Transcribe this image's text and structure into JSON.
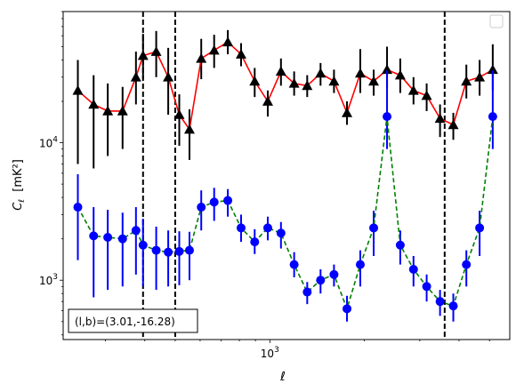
{
  "chart_data": {
    "type": "line",
    "xscale": "log",
    "yscale": "log",
    "xlim": [
      220,
      5800
    ],
    "ylim": [
      370,
      90000
    ],
    "xlabel": "ℓ",
    "ylabel": "C_ℓ  [mK²]",
    "x_major_ticks": [
      {
        "value": 1000,
        "label": "10³"
      }
    ],
    "y_major_ticks": [
      {
        "value": 1000,
        "label": "10³"
      },
      {
        "value": 10000,
        "label": "10⁴"
      }
    ],
    "vlines": [
      395,
      500,
      3600
    ],
    "annotation": "(l,b)=(3.01,-16.28)",
    "legend": {
      "position": "upper right",
      "entries": []
    },
    "series": [
      {
        "color": "#ff0000",
        "marker": "triangle",
        "marker_color": "#000000",
        "errorbar_color": "#000000",
        "linestyle": "solid",
        "x": [
          245,
          275,
          305,
          340,
          375,
          395,
          435,
          475,
          515,
          555,
          605,
          665,
          735,
          810,
          895,
          985,
          1085,
          1195,
          1315,
          1450,
          1600,
          1760,
          1940,
          2140,
          2360,
          2600,
          2865,
          3155,
          3480,
          3835,
          4220,
          4650,
          5120
        ],
        "y": [
          24000,
          19000,
          17000,
          17000,
          30000,
          43000,
          46000,
          30000,
          16000,
          12500,
          41000,
          47000,
          54000,
          44000,
          28000,
          20000,
          33000,
          27000,
          26000,
          32000,
          28000,
          16500,
          32000,
          28000,
          34000,
          31000,
          24000,
          22000,
          15000,
          13500,
          28000,
          30000,
          34000
        ],
        "err_low": [
          17000,
          12500,
          9000,
          8000,
          11000,
          14000,
          16000,
          14000,
          6500,
          5000,
          12000,
          12000,
          10000,
          8000,
          6500,
          4500,
          7000,
          5000,
          4500,
          6000,
          5000,
          3000,
          9000,
          6000,
          9000,
          8000,
          5000,
          5000,
          4000,
          3000,
          7000,
          8000,
          10000
        ],
        "err_high": [
          16000,
          12000,
          10000,
          8500,
          16000,
          19000,
          19000,
          19000,
          6500,
          5000,
          16000,
          14000,
          12000,
          9000,
          7000,
          4000,
          8000,
          6000,
          5000,
          6000,
          6000,
          3500,
          16000,
          6000,
          16000,
          10000,
          6000,
          5000,
          4000,
          3000,
          9000,
          10000,
          18000
        ]
      },
      {
        "color": "#008000",
        "marker": "circle",
        "marker_color": "#0000ff",
        "errorbar_color": "#0000ff",
        "linestyle": "dashed",
        "x": [
          245,
          275,
          305,
          340,
          375,
          395,
          435,
          475,
          515,
          555,
          605,
          665,
          735,
          810,
          895,
          985,
          1085,
          1195,
          1315,
          1450,
          1600,
          1760,
          1940,
          2140,
          2360,
          2600,
          2865,
          3155,
          3480,
          3835,
          4220,
          4650,
          5120
        ],
        "y": [
          3400,
          2100,
          2050,
          2000,
          2300,
          1800,
          1650,
          1600,
          1620,
          1650,
          3400,
          3700,
          3800,
          2400,
          1900,
          2400,
          2200,
          1300,
          820,
          1000,
          1100,
          620,
          1300,
          2400,
          15500,
          1800,
          1200,
          900,
          700,
          650,
          1300,
          2400,
          15500
        ],
        "err_low": [
          2000,
          1350,
          1200,
          1100,
          1200,
          900,
          800,
          700,
          700,
          650,
          1100,
          1000,
          900,
          500,
          350,
          450,
          500,
          250,
          150,
          200,
          200,
          120,
          400,
          900,
          6500,
          500,
          300,
          200,
          150,
          150,
          400,
          900,
          6500
        ],
        "err_high": [
          2500,
          1300,
          1200,
          1100,
          1100,
          1000,
          800,
          700,
          650,
          600,
          1100,
          1000,
          800,
          600,
          450,
          500,
          450,
          300,
          150,
          200,
          200,
          150,
          350,
          800,
          18000,
          500,
          300,
          200,
          150,
          150,
          350,
          800,
          18000
        ]
      }
    ]
  }
}
